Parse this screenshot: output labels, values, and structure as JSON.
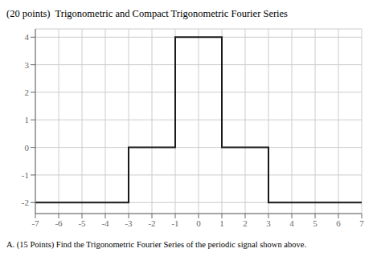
{
  "chart_data": {
    "type": "line",
    "title": "(20 points)  Trigonometric and Compact Trigonometric Fourier Series",
    "subtitle": "A. (15 Points) Find the Trigonometric Fourier Series of the periodic signal shown above.",
    "x": [
      -7,
      -3,
      -3,
      -1,
      -1,
      1,
      1,
      3,
      3,
      7
    ],
    "values": [
      -2,
      -2,
      0,
      0,
      4,
      4,
      0,
      0,
      -2,
      -2
    ],
    "color": "#1a1a1a",
    "xlim": [
      -7,
      7
    ],
    "ylim": [
      -2.4,
      4.3
    ],
    "xticks": [
      -7,
      -6,
      -5,
      -4,
      -3,
      -2,
      -1,
      0,
      1,
      2,
      3,
      4,
      5,
      6,
      7
    ],
    "yticks": [
      -2,
      -1,
      0,
      1,
      2,
      3,
      4
    ],
    "grid": true
  }
}
